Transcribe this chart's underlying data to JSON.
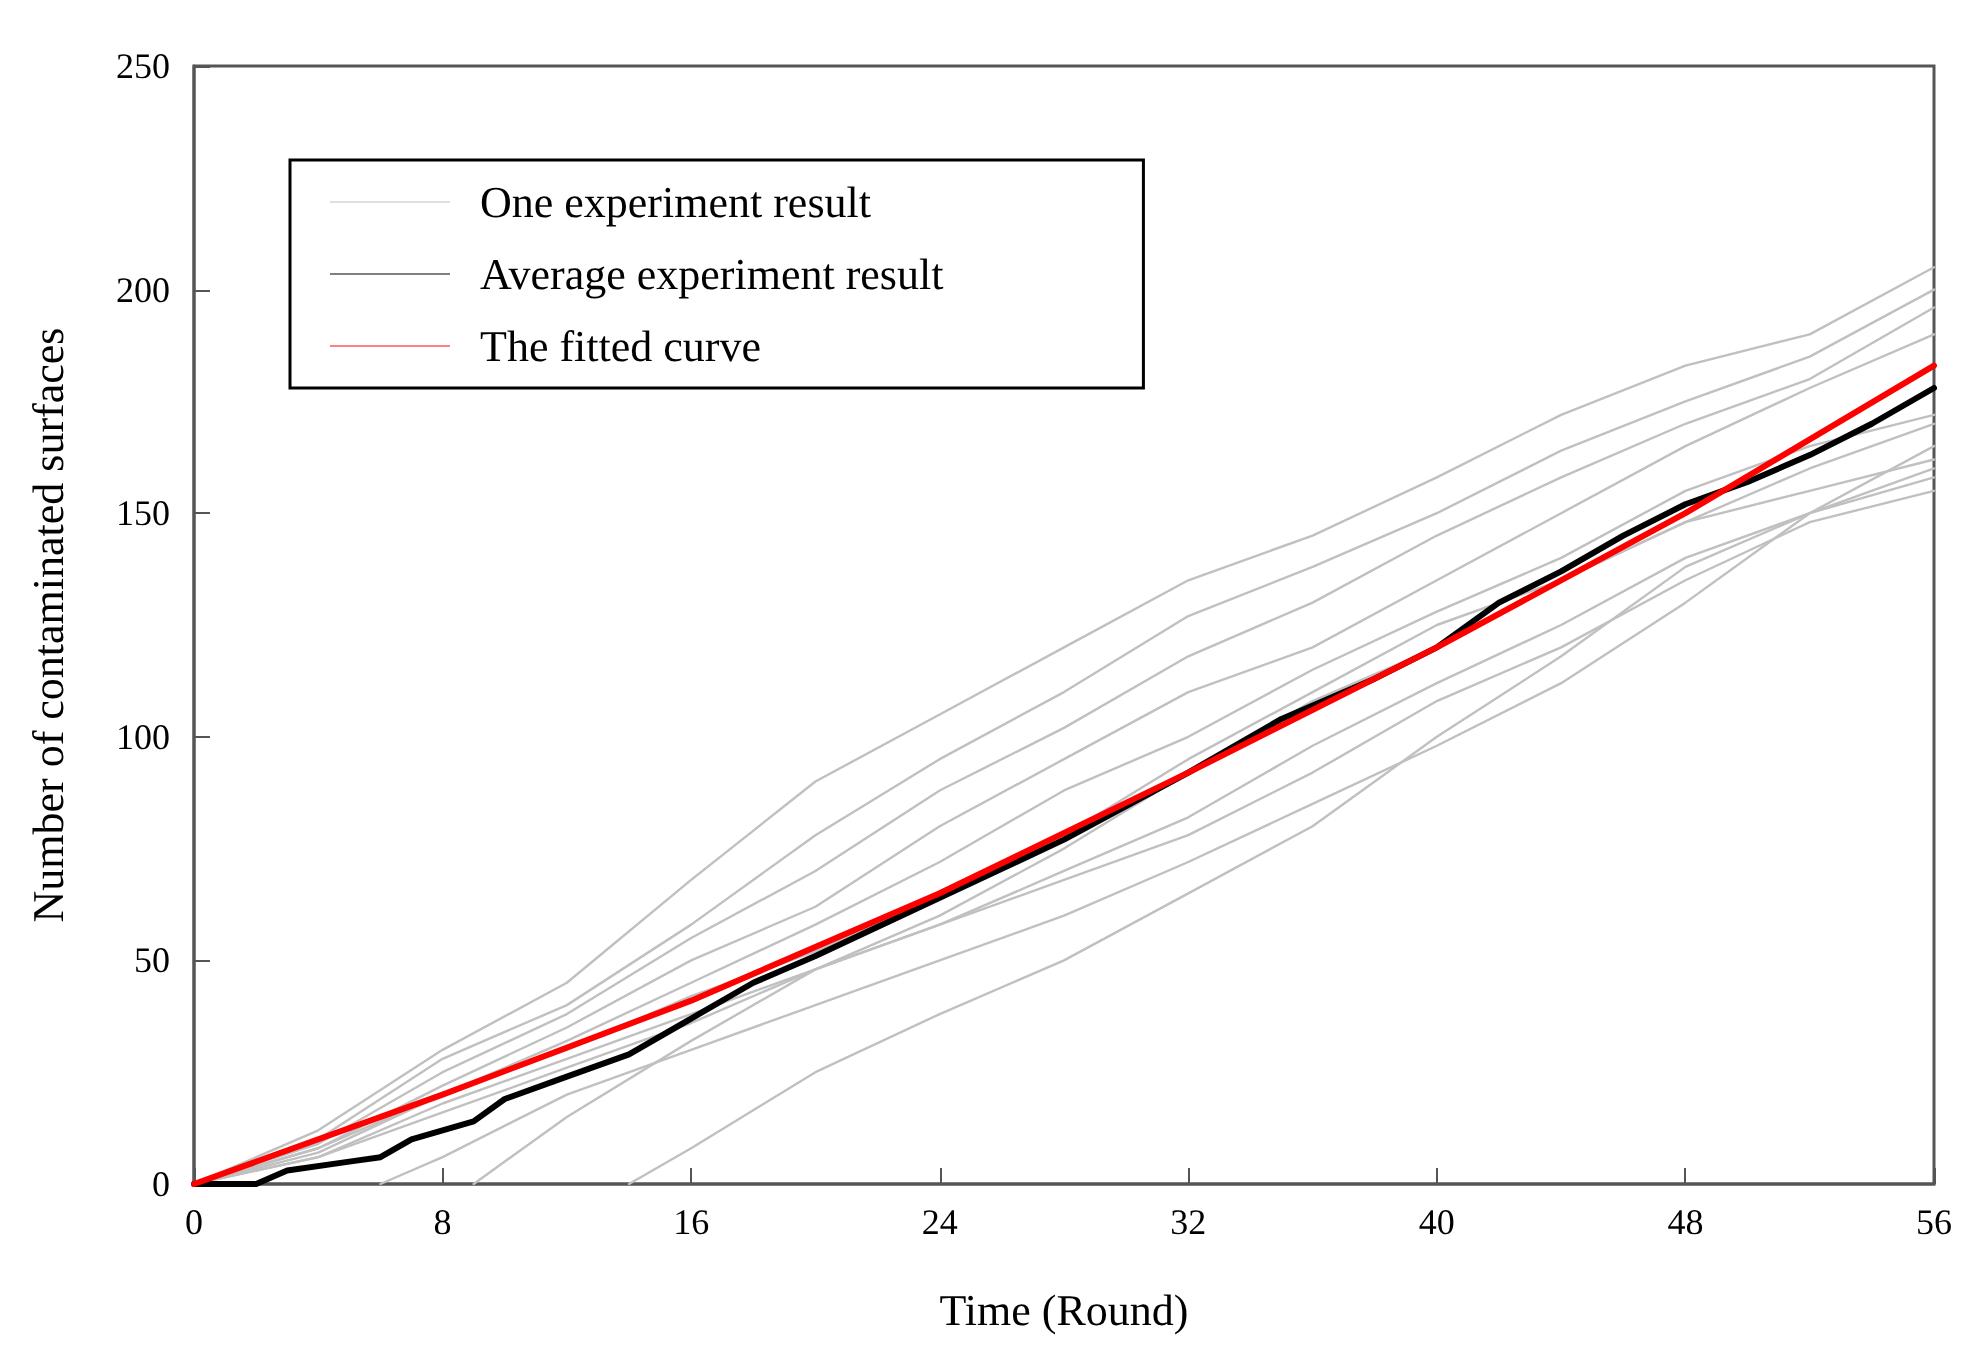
{
  "chart_data": {
    "type": "line",
    "xlabel": "Time (Round)",
    "ylabel": "Number of contaminated surfaces",
    "xlim": [
      0,
      56
    ],
    "xticks": [
      0,
      8,
      16,
      24,
      32,
      40,
      48,
      56
    ],
    "ylim": [
      0,
      250
    ],
    "yticks": [
      0,
      50,
      100,
      150,
      200,
      250
    ],
    "grid": false,
    "legend": "top left",
    "marker": "none",
    "line_style": "solid",
    "series": [
      {
        "name": "One experiment result",
        "color": "#c0c0c0",
        "x": [
          0,
          4,
          8,
          12,
          16,
          20,
          24,
          28,
          32,
          36,
          40,
          44,
          48,
          52,
          56
        ],
        "values": [
          0,
          12,
          30,
          45,
          68,
          90,
          105,
          120,
          135,
          145,
          158,
          172,
          183,
          190,
          205
        ]
      },
      {
        "color": "#c0c0c0",
        "x": [
          0,
          4,
          8,
          12,
          16,
          20,
          24,
          28,
          32,
          36,
          40,
          44,
          48,
          52,
          56
        ],
        "values": [
          0,
          10,
          28,
          40,
          58,
          78,
          95,
          110,
          127,
          138,
          150,
          164,
          175,
          185,
          200
        ]
      },
      {
        "color": "#c0c0c0",
        "x": [
          0,
          4,
          8,
          12,
          16,
          20,
          24,
          28,
          32,
          36,
          40,
          44,
          48,
          52,
          56
        ],
        "values": [
          0,
          9,
          25,
          38,
          55,
          70,
          88,
          102,
          118,
          130,
          145,
          158,
          170,
          180,
          196
        ]
      },
      {
        "color": "#c0c0c0",
        "x": [
          0,
          4,
          8,
          12,
          16,
          20,
          24,
          28,
          32,
          36,
          40,
          44,
          48,
          52,
          56
        ],
        "values": [
          0,
          8,
          22,
          35,
          50,
          62,
          80,
          95,
          110,
          120,
          135,
          150,
          165,
          178,
          190
        ]
      },
      {
        "color": "#c0c0c0",
        "x": [
          0,
          4,
          8,
          12,
          16,
          20,
          24,
          28,
          32,
          36,
          40,
          44,
          48,
          52,
          56
        ],
        "values": [
          0,
          7,
          20,
          32,
          45,
          58,
          72,
          88,
          100,
          115,
          128,
          140,
          155,
          165,
          172
        ]
      },
      {
        "color": "#c0c0c0",
        "x": [
          0,
          4,
          8,
          12,
          16,
          20,
          24,
          28,
          32,
          36,
          40,
          44,
          48,
          52,
          56
        ],
        "values": [
          0,
          8,
          20,
          30,
          42,
          52,
          65,
          78,
          95,
          110,
          125,
          135,
          148,
          155,
          162
        ]
      },
      {
        "color": "#c0c0c0",
        "x": [
          0,
          4,
          8,
          12,
          16,
          20,
          24,
          28,
          32,
          36,
          40,
          44,
          48,
          52,
          56
        ],
        "values": [
          0,
          6,
          18,
          28,
          38,
          48,
          58,
          70,
          82,
          98,
          112,
          125,
          140,
          150,
          158
        ]
      },
      {
        "color": "#c0c0c0",
        "x": [
          0,
          4,
          8,
          12,
          16,
          20,
          24,
          28,
          32,
          36,
          40,
          44,
          48,
          52,
          56
        ],
        "values": [
          0,
          6,
          16,
          26,
          36,
          48,
          58,
          68,
          78,
          92,
          108,
          120,
          135,
          148,
          155
        ]
      },
      {
        "color": "#c0c0c0",
        "x": [
          6,
          8,
          12,
          16,
          20,
          24,
          28,
          32,
          36,
          40,
          44,
          48,
          52,
          56
        ],
        "values": [
          0,
          6,
          20,
          30,
          40,
          50,
          60,
          72,
          85,
          98,
          112,
          130,
          150,
          165
        ]
      },
      {
        "color": "#c0c0c0",
        "x": [
          9,
          12,
          16,
          20,
          24,
          28,
          32,
          36,
          40,
          44,
          48,
          52,
          56
        ],
        "values": [
          0,
          15,
          32,
          48,
          60,
          75,
          92,
          108,
          120,
          135,
          148,
          160,
          170
        ]
      },
      {
        "color": "#c0c0c0",
        "x": [
          14,
          16,
          20,
          24,
          28,
          32,
          36,
          40,
          44,
          48,
          52,
          56
        ],
        "values": [
          0,
          8,
          25,
          38,
          50,
          65,
          80,
          100,
          118,
          138,
          150,
          160
        ]
      },
      {
        "name": "Average experiment result",
        "color": "#000000",
        "x": [
          0,
          2,
          3,
          5,
          6,
          7,
          8,
          9,
          10,
          12,
          14,
          16,
          18,
          20,
          24,
          28,
          32,
          35,
          38,
          40,
          42,
          44,
          46,
          48,
          50,
          52,
          54,
          56
        ],
        "values": [
          0,
          0,
          3,
          5,
          6,
          10,
          12,
          14,
          19,
          24,
          29,
          37,
          45,
          51,
          64,
          77,
          92,
          104,
          113,
          120,
          130,
          137,
          145,
          152,
          157,
          163,
          170,
          178
        ]
      },
      {
        "name": "The fitted curve",
        "color": "#ff0000",
        "x": [
          0,
          8,
          16,
          24,
          32,
          40,
          48,
          56
        ],
        "values": [
          0,
          20,
          41,
          65,
          92,
          120,
          150,
          183
        ]
      }
    ]
  }
}
